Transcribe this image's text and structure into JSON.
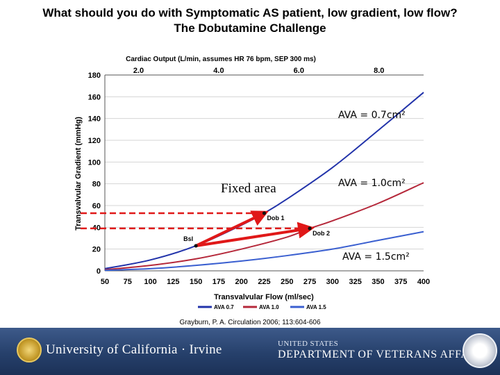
{
  "slide": {
    "title_line1": "What should you do with Symptomatic AS patient, low gradient, low flow?",
    "title_line2": "The Dobutamine Challenge"
  },
  "chart_data": {
    "type": "line",
    "x_label": "Transvalvular Flow (ml/sec)",
    "y_label": "Transvalvular Gradient (mmHg)",
    "top_axis_label": "Cardiac Output (L/min, assumes HR 76 bpm, SEP 300 ms)",
    "x_range": [
      50,
      400
    ],
    "y_range": [
      0,
      180
    ],
    "x_ticks": [
      50,
      75,
      100,
      125,
      150,
      175,
      200,
      225,
      250,
      275,
      300,
      325,
      350,
      375,
      400
    ],
    "y_ticks": [
      0,
      20,
      40,
      60,
      80,
      100,
      120,
      140,
      160,
      180
    ],
    "top_ticks": [
      {
        "label": "2.0",
        "flow": 87
      },
      {
        "label": "4.0",
        "flow": 175
      },
      {
        "label": "6.0",
        "flow": 263
      },
      {
        "label": "8.0",
        "flow": 351
      }
    ],
    "series": [
      {
        "name": "AVA 0.7",
        "color": "#2233aa",
        "x": [
          50,
          100,
          150,
          200,
          225,
          250,
          300,
          350,
          400
        ],
        "y": [
          2,
          10,
          23,
          42,
          53,
          66,
          95,
          129,
          164
        ]
      },
      {
        "name": "AVA 1.0",
        "color": "#b5283a",
        "x": [
          50,
          100,
          150,
          200,
          250,
          275,
          300,
          350,
          400
        ],
        "y": [
          1,
          5,
          11,
          20,
          31,
          39,
          46,
          62,
          81
        ]
      },
      {
        "name": "AVA 1.5",
        "color": "#3a5fd0",
        "x": [
          50,
          100,
          150,
          200,
          250,
          300,
          350,
          400
        ],
        "y": [
          0.5,
          2,
          5,
          9,
          14,
          20,
          28,
          36
        ]
      }
    ],
    "points": [
      {
        "label": "Bsl",
        "x": 150,
        "y": 23
      },
      {
        "label": "Dob 1",
        "x": 225,
        "y": 53
      },
      {
        "label": "Dob 2",
        "x": 275,
        "y": 39
      }
    ],
    "guides": [
      {
        "y": 53,
        "x_to": 225
      },
      {
        "y": 39,
        "x_to": 275
      }
    ],
    "arrows": [
      {
        "from": [
          150,
          23
        ],
        "to": [
          225,
          53
        ]
      },
      {
        "from": [
          150,
          23
        ],
        "to": [
          275,
          39
        ]
      }
    ],
    "annotations": {
      "fixed_area": "Fixed area",
      "ava07": "AVA = 0.7cm²",
      "ava10": "AVA = 1.0cm²",
      "ava15": "AVA = 1.5cm²"
    },
    "legend": [
      "AVA 0.7",
      "AVA 1.0",
      "AVA 1.5"
    ],
    "citation": "Grayburn, P. A. Circulation 2006; 113:604-606"
  },
  "footer": {
    "uci": "University of California · Irvine",
    "va_line1": "UNITED STATES",
    "va_line2": "DEPARTMENT OF VETERANS AFFAIRS"
  }
}
